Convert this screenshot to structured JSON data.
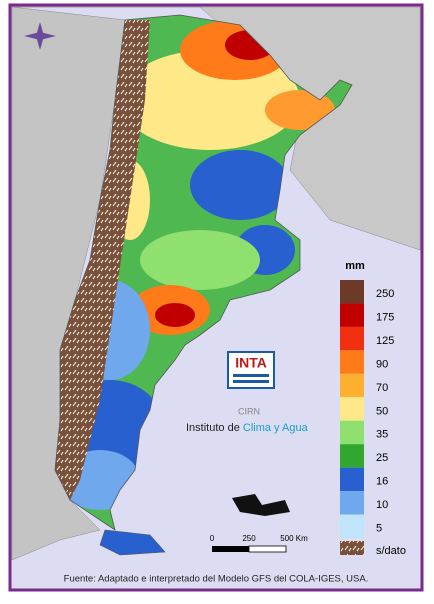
{
  "legend": {
    "unit": "mm",
    "items": [
      {
        "label": "250",
        "color": "#6b3a28"
      },
      {
        "label": "175",
        "color": "#c00000"
      },
      {
        "label": "125",
        "color": "#f03010"
      },
      {
        "label": "90",
        "color": "#ff7a18"
      },
      {
        "label": "70",
        "color": "#ffb030"
      },
      {
        "label": "50",
        "color": "#ffe888"
      },
      {
        "label": "35",
        "color": "#90e070"
      },
      {
        "label": "25",
        "color": "#30a830"
      },
      {
        "label": "16",
        "color": "#2860d0"
      },
      {
        "label": "10",
        "color": "#70a8ee"
      },
      {
        "label": "5",
        "color": "#c0e4fa"
      }
    ],
    "no_data": "s/dato"
  },
  "scale": {
    "labels": [
      "0",
      "250",
      "500 Km"
    ]
  },
  "logo": {
    "brand": "INTA",
    "sub": "CIRN",
    "institute_plain": "Instituto de ",
    "institute_colored": "Clima y Agua"
  },
  "source": "Fuente: Adaptado e interpretado del Modelo GFS del COLA-IGES, USA."
}
